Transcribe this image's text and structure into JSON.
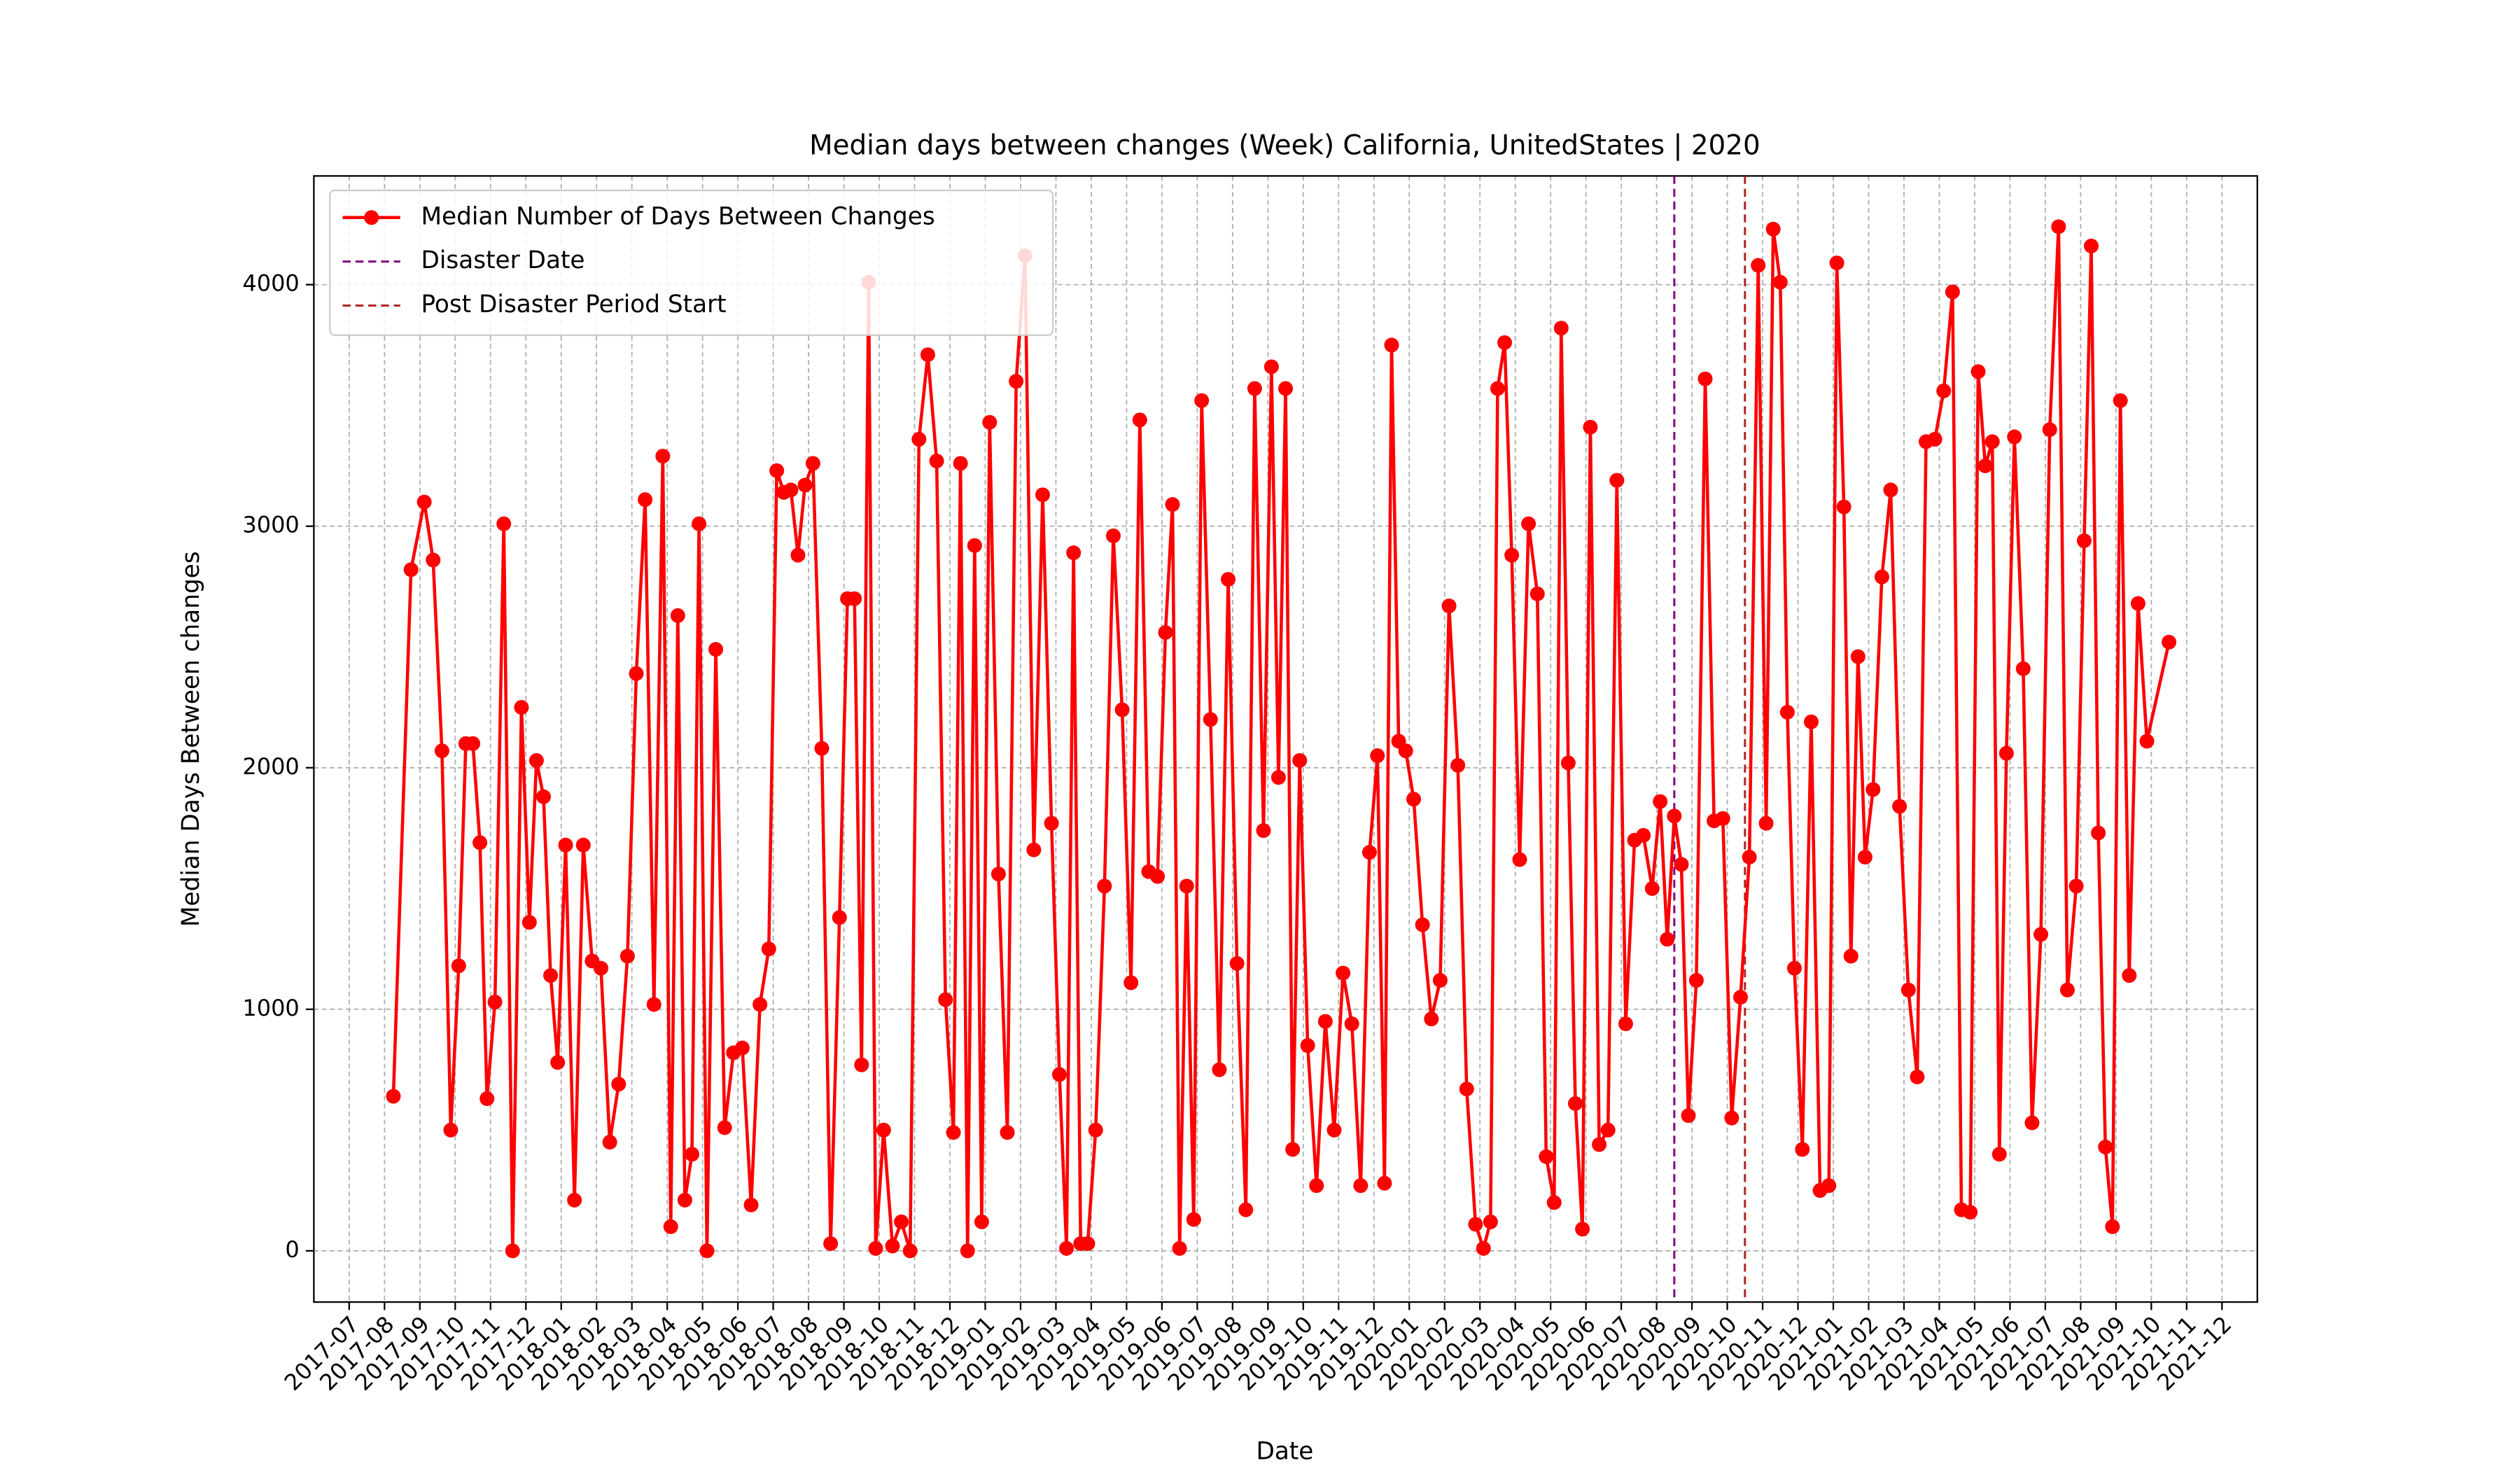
{
  "chart_data": {
    "type": "line",
    "title": "Median days between changes (Week) California, UnitedStates | 2020",
    "x_label": "Date",
    "y_label": "Median Days Between changes",
    "x": [
      "2017-08",
      "2017-08",
      "2017-09",
      "2017-09",
      "2017-09",
      "2017-09",
      "2017-10",
      "2017-10",
      "2017-10",
      "2017-10",
      "2017-10",
      "2017-11",
      "2017-11",
      "2017-11",
      "2017-11",
      "2017-12",
      "2017-12",
      "2017-12",
      "2017-12",
      "2017-12",
      "2018-01",
      "2018-01",
      "2018-01",
      "2018-01",
      "2018-02",
      "2018-02",
      "2018-02",
      "2018-02",
      "2018-03",
      "2018-03",
      "2018-03",
      "2018-03",
      "2018-04",
      "2018-04",
      "2018-04",
      "2018-04",
      "2018-04",
      "2018-05",
      "2018-05",
      "2018-05",
      "2018-05",
      "2018-06",
      "2018-06",
      "2018-06",
      "2018-06",
      "2018-07",
      "2018-07",
      "2018-07",
      "2018-07",
      "2018-07",
      "2018-08",
      "2018-08",
      "2018-08",
      "2018-08",
      "2018-09",
      "2018-09",
      "2018-09",
      "2018-09",
      "2018-09",
      "2018-10",
      "2018-10",
      "2018-10",
      "2018-10",
      "2018-11",
      "2018-11",
      "2018-11",
      "2018-11",
      "2018-12",
      "2018-12",
      "2018-12",
      "2018-12",
      "2018-12",
      "2019-01",
      "2019-01",
      "2019-01",
      "2019-01",
      "2019-02",
      "2019-02",
      "2019-02",
      "2019-02",
      "2019-03",
      "2019-03",
      "2019-03",
      "2019-03",
      "2019-03",
      "2019-04",
      "2019-04",
      "2019-04",
      "2019-04",
      "2019-05",
      "2019-05",
      "2019-05",
      "2019-05",
      "2019-06",
      "2019-06",
      "2019-06",
      "2019-06",
      "2019-06",
      "2019-07",
      "2019-07",
      "2019-07",
      "2019-07",
      "2019-08",
      "2019-08",
      "2019-08",
      "2019-08",
      "2019-09",
      "2019-09",
      "2019-09",
      "2019-09",
      "2019-09",
      "2019-10",
      "2019-10",
      "2019-10",
      "2019-10",
      "2019-11",
      "2019-11",
      "2019-11",
      "2019-11",
      "2019-12",
      "2019-12",
      "2019-12",
      "2019-12",
      "2019-12",
      "2020-01",
      "2020-01",
      "2020-01",
      "2020-01",
      "2020-02",
      "2020-02",
      "2020-02",
      "2020-02",
      "2020-03",
      "2020-03",
      "2020-03",
      "2020-03",
      "2020-03",
      "2020-04",
      "2020-04",
      "2020-04",
      "2020-04",
      "2020-05",
      "2020-05",
      "2020-05",
      "2020-05",
      "2020-05",
      "2020-06",
      "2020-06",
      "2020-06",
      "2020-06",
      "2020-07",
      "2020-07",
      "2020-07",
      "2020-07",
      "2020-08",
      "2020-08",
      "2020-08",
      "2020-08",
      "2020-08",
      "2020-09",
      "2020-09",
      "2020-09",
      "2020-09",
      "2020-10",
      "2020-10",
      "2020-10",
      "2020-10",
      "2020-11",
      "2020-11",
      "2020-11",
      "2020-11",
      "2020-11",
      "2020-12",
      "2020-12",
      "2020-12",
      "2020-12",
      "2021-01",
      "2021-01",
      "2021-01",
      "2021-01",
      "2021-01",
      "2021-02",
      "2021-02",
      "2021-02",
      "2021-02",
      "2021-03",
      "2021-03",
      "2021-03",
      "2021-03",
      "2021-04",
      "2021-04",
      "2021-04",
      "2021-04",
      "2021-05",
      "2021-05",
      "2021-05",
      "2021-05",
      "2021-05",
      "2021-06",
      "2021-06",
      "2021-06",
      "2021-06",
      "2021-07",
      "2021-07",
      "2021-07",
      "2021-07",
      "2021-08",
      "2021-08",
      "2021-08",
      "2021-08",
      "2021-08",
      "2021-09",
      "2021-09",
      "2021-09",
      "2021-09",
      "2021-10"
    ],
    "series": [
      {
        "name": "Median Number of Days Between Changes",
        "color": "#ff0000",
        "values": [
          640,
          2820,
          3100,
          2860,
          2070,
          500,
          1180,
          2100,
          2100,
          1690,
          630,
          1030,
          3010,
          0,
          2250,
          1360,
          2030,
          1880,
          1140,
          780,
          1680,
          210,
          1680,
          1200,
          1170,
          450,
          690,
          1220,
          2390,
          3110,
          1020,
          3290,
          100,
          2630,
          210,
          400,
          3010,
          0,
          2490,
          510,
          820,
          840,
          190,
          1020,
          1250,
          3230,
          3140,
          3150,
          2880,
          3170,
          3260,
          2080,
          30,
          1380,
          2700,
          2700,
          770,
          4010,
          10,
          500,
          20,
          120,
          0,
          3360,
          3710,
          3270,
          1040,
          490,
          3260,
          0,
          2920,
          120,
          3430,
          1560,
          490,
          3600,
          4120,
          1660,
          3130,
          1770,
          730,
          10,
          2890,
          30,
          30,
          500,
          1510,
          2960,
          2240,
          1110,
          3440,
          1570,
          1550,
          2560,
          3090,
          10,
          1510,
          130,
          3520,
          2200,
          750,
          2780,
          1190,
          170,
          3570,
          1740,
          3660,
          1960,
          3570,
          420,
          2030,
          850,
          270,
          950,
          500,
          1150,
          940,
          270,
          1650,
          2050,
          280,
          3750,
          2110,
          2070,
          1870,
          1350,
          960,
          1120,
          2670,
          2010,
          670,
          110,
          10,
          120,
          3570,
          3760,
          2880,
          1620,
          3010,
          2720,
          390,
          200,
          3820,
          2020,
          610,
          90,
          3410,
          440,
          500,
          3190,
          940,
          1700,
          1720,
          1500,
          1860,
          1290,
          1800,
          1600,
          560,
          1120,
          3610,
          1780,
          1790,
          550,
          1050,
          1630,
          4080,
          1770,
          4230,
          4010,
          2230,
          1170,
          420,
          2190,
          250,
          270,
          4090,
          3080,
          1220,
          2460,
          1630,
          1910,
          2790,
          3150,
          1840,
          1080,
          720,
          3350,
          3360,
          3560,
          3970,
          170,
          160,
          3640,
          3250,
          3350,
          400,
          2060,
          3370,
          2410,
          530,
          1310,
          3400,
          4240,
          1080,
          1510,
          2940,
          4160,
          1730,
          430,
          100,
          3520,
          1140,
          2680,
          2110,
          2520
        ]
      }
    ],
    "vlines": [
      {
        "name": "Disaster Date",
        "x": "2020-08",
        "color": "#800080"
      },
      {
        "name": "Post Disaster Period Start",
        "x": "2020-10",
        "color": "#b22222"
      }
    ],
    "xlim": [
      "2017-06",
      "2022-01"
    ],
    "xticks": [
      "2017-07",
      "2017-08",
      "2017-09",
      "2017-10",
      "2017-11",
      "2017-12",
      "2018-01",
      "2018-02",
      "2018-03",
      "2018-04",
      "2018-05",
      "2018-06",
      "2018-07",
      "2018-08",
      "2018-09",
      "2018-10",
      "2018-11",
      "2018-12",
      "2019-01",
      "2019-02",
      "2019-03",
      "2019-04",
      "2019-05",
      "2019-06",
      "2019-07",
      "2019-08",
      "2019-09",
      "2019-10",
      "2019-11",
      "2019-12",
      "2020-01",
      "2020-02",
      "2020-03",
      "2020-04",
      "2020-05",
      "2020-06",
      "2020-07",
      "2020-08",
      "2020-09",
      "2020-10",
      "2020-11",
      "2020-12",
      "2021-01",
      "2021-02",
      "2021-03",
      "2021-04",
      "2021-05",
      "2021-06",
      "2021-07",
      "2021-08",
      "2021-09",
      "2021-10",
      "2021-11",
      "2021-12"
    ],
    "ylim": [
      -212,
      4450
    ],
    "yticks": [
      0,
      1000,
      2000,
      3000,
      4000
    ],
    "grid": true,
    "legend": "upper left"
  }
}
